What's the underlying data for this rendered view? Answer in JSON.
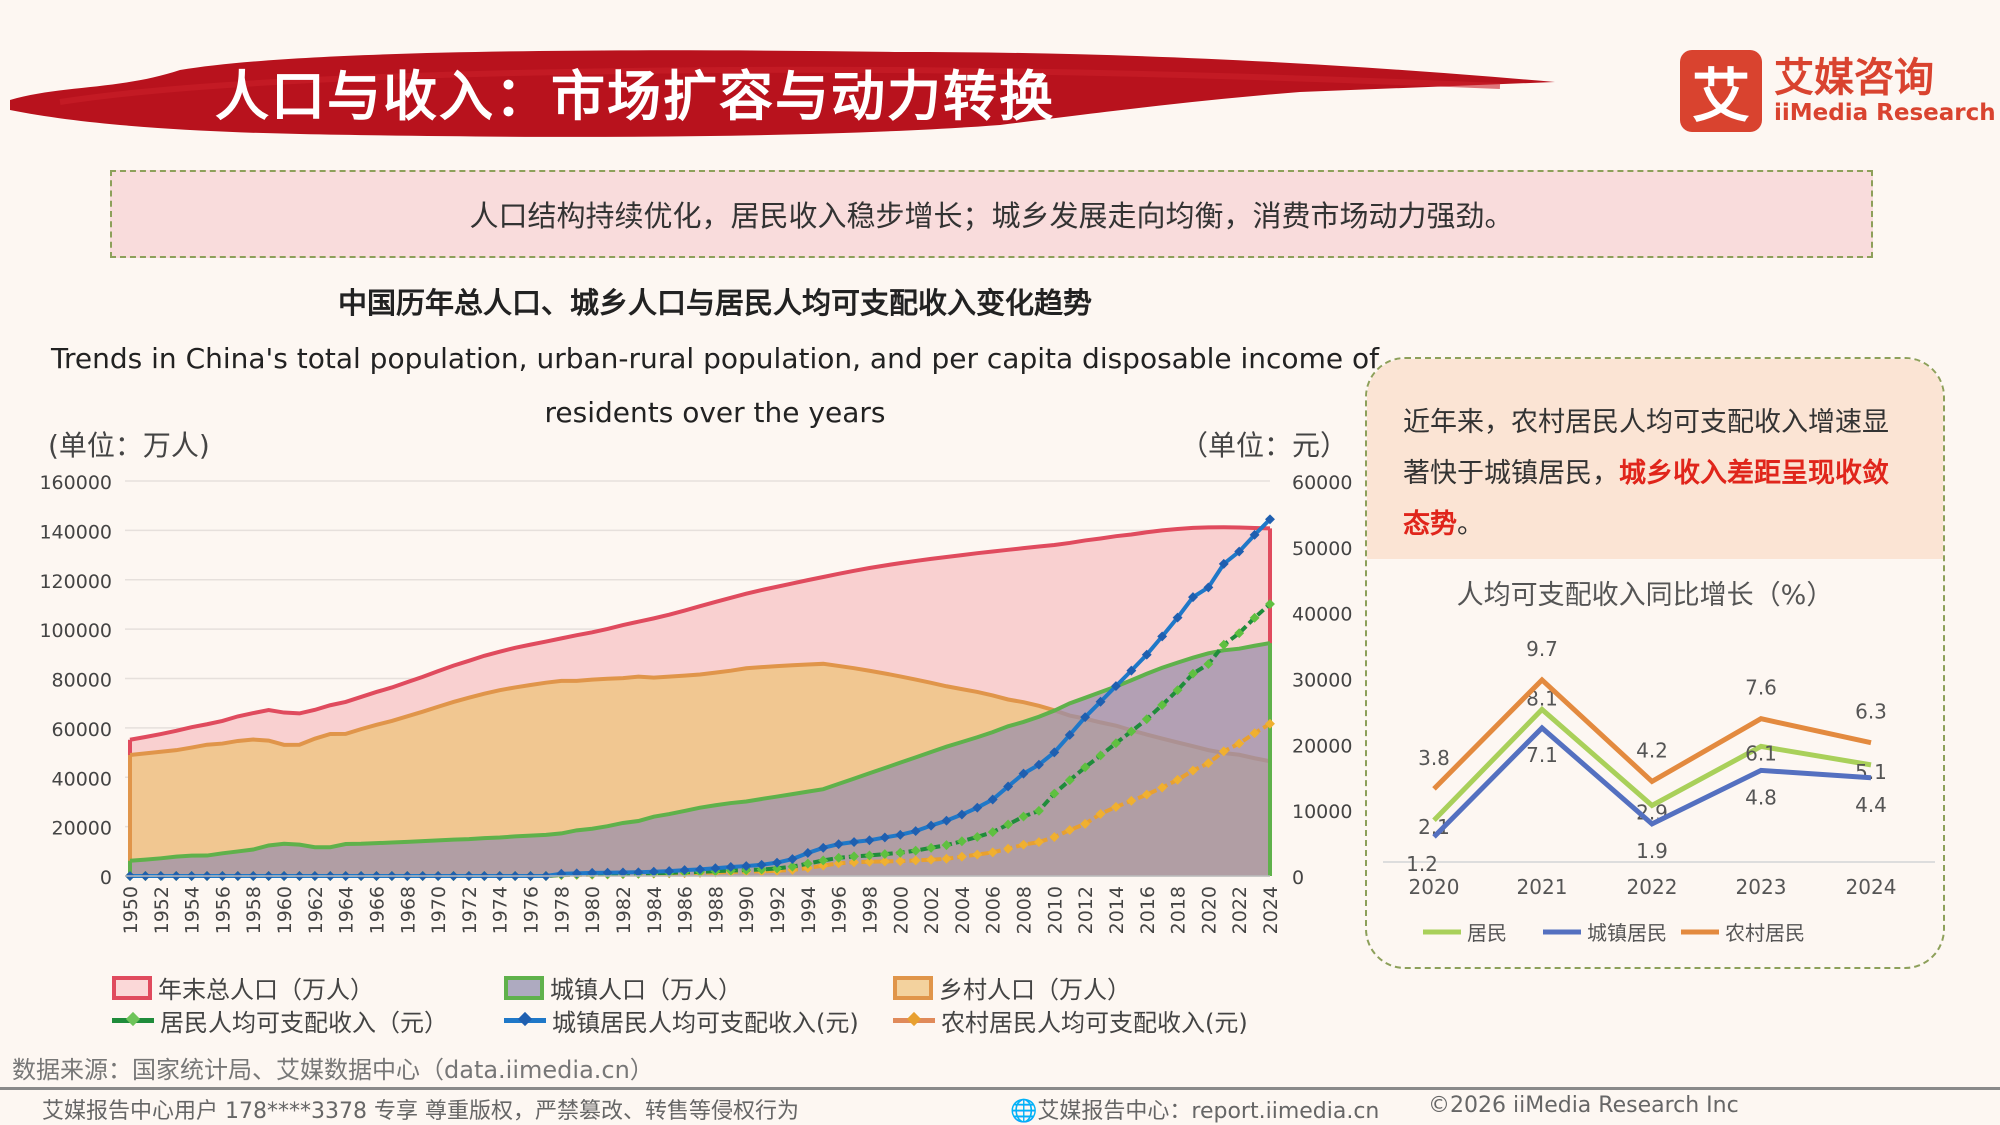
{
  "header": {
    "title": "人口与收入：市场扩容与动力转换",
    "logo_cn": "艾媒咨询",
    "logo_en": "iiMedia Research",
    "logo_mark": "艾"
  },
  "summary": "人口结构持续优化，居民收入稳步增长；城乡发展走向均衡，消费市场动力强劲。",
  "colors": {
    "brand": "#d9432f",
    "total": "#e04b5e",
    "total_fill": "#f9d0d0",
    "urban_line": "#5fb14b",
    "urban_fill": "#9b90ab",
    "rural_line": "#e0954a",
    "rural_fill": "#f0c58a",
    "resident_income": "#1f8c3b",
    "urban_income": "#1f78c8",
    "rural_income": "#e8a030"
  },
  "chart_data": [
    {
      "type": "area+line",
      "title": "中国历年总人口、城乡人口与居民人均可支配收入变化趋势",
      "subtitle": "Trends in China's total population, urban-rural population, and per capita disposable income of residents over the years",
      "ylabel_left": "(单位：万人)",
      "ylabel_right": "（单位：元）",
      "ylim_left": [
        0,
        160000
      ],
      "yticks_left": [
        0,
        20000,
        40000,
        60000,
        80000,
        100000,
        120000,
        140000,
        160000
      ],
      "ylim_right": [
        0,
        60000
      ],
      "yticks_right": [
        0,
        10000,
        20000,
        30000,
        40000,
        50000,
        60000
      ],
      "grid": true,
      "legend_position": "bottom",
      "x_start": 1950,
      "x_end": 2024,
      "series": [
        {
          "name": "年末总人口（万人）",
          "axis": "left",
          "kind": "area",
          "values": [
            55196,
            56300,
            57482,
            58796,
            60266,
            61465,
            62828,
            64653,
            65994,
            67207,
            66207,
            65859,
            67295,
            69172,
            70499,
            72538,
            74542,
            76368,
            78534,
            80671,
            82992,
            85229,
            87177,
            89211,
            90859,
            92420,
            93717,
            94974,
            96259,
            97542,
            98705,
            100072,
            101654,
            103008,
            104357,
            105851,
            107507,
            109300,
            111026,
            112704,
            114333,
            115823,
            117171,
            118517,
            119850,
            121121,
            122389,
            123626,
            124761,
            125786,
            126743,
            127627,
            128453,
            129227,
            129988,
            130756,
            131448,
            132129,
            132802,
            133450,
            134091,
            134916,
            135922,
            136726,
            137646,
            138326,
            139232,
            140011,
            140541,
            141008,
            141212,
            141260,
            141175,
            140967,
            140828
          ]
        },
        {
          "name": "城镇人口（万人）",
          "axis": "left",
          "kind": "area",
          "values": [
            6169,
            6632,
            7163,
            7826,
            8249,
            8285,
            9185,
            9949,
            10721,
            12371,
            13073,
            12707,
            11659,
            11646,
            12950,
            13045,
            13313,
            13548,
            13838,
            14117,
            14424,
            14711,
            14935,
            15345,
            15595,
            16030,
            16341,
            16669,
            17245,
            18495,
            19140,
            20171,
            21480,
            22274,
            24017,
            25094,
            26366,
            27674,
            28661,
            29540,
            30195,
            31203,
            32175,
            33173,
            34169,
            35174,
            37304,
            39449,
            41608,
            43748,
            45906,
            48064,
            50212,
            52376,
            54283,
            56212,
            58288,
            60633,
            62403,
            64512,
            66978,
            69927,
            72175,
            74502,
            76738,
            79302,
            81924,
            84343,
            86433,
            88426,
            90220,
            91425,
            92071,
            93267,
            94350
          ]
        },
        {
          "name": "乡村人口（万人）",
          "axis": "left",
          "kind": "area",
          "values": [
            49027,
            49668,
            50319,
            50970,
            52017,
            53180,
            53643,
            54704,
            55273,
            54836,
            53134,
            53152,
            55636,
            57526,
            57549,
            59493,
            61229,
            62820,
            64696,
            66554,
            68568,
            70518,
            72242,
            73866,
            75264,
            76390,
            77376,
            78305,
            79014,
            79047,
            79565,
            79901,
            80174,
            80734,
            80340,
            80757,
            81141,
            81626,
            82365,
            83164,
            84138,
            84620,
            84996,
            85344,
            85681,
            85947,
            85085,
            84177,
            83153,
            82038,
            80837,
            79563,
            78241,
            76851,
            75705,
            74544,
            73160,
            71496,
            70399,
            68938,
            67113,
            64989,
            63747,
            62224,
            60908,
            59024,
            57308,
            55668,
            54108,
            52582,
            50992,
            49835,
            49104,
            47700,
            46478
          ]
        },
        {
          "name": "居民人均可支配收入（元）",
          "axis": "right",
          "kind": "line",
          "values": [
            0,
            0,
            0,
            0,
            0,
            0,
            0,
            0,
            0,
            0,
            0,
            0,
            0,
            0,
            0,
            0,
            0,
            0,
            0,
            0,
            0,
            0,
            0,
            0,
            0,
            0,
            0,
            0,
            171,
            210,
            250,
            280,
            320,
            360,
            420,
            480,
            560,
            620,
            740,
            830,
            900,
            990,
            1150,
            1420,
            1880,
            2360,
            2760,
            2980,
            3120,
            3330,
            3530,
            3850,
            4280,
            4690,
            5280,
            5930,
            6670,
            7830,
            9030,
            9900,
            12520,
            14550,
            16510,
            18311,
            20167,
            21966,
            23821,
            25974,
            28228,
            30733,
            32189,
            35128,
            36883,
            39218,
            41314
          ]
        },
        {
          "name": "城镇居民人均可支配收入(元)",
          "axis": "right",
          "kind": "line",
          "values": [
            0,
            0,
            0,
            0,
            0,
            0,
            0,
            0,
            0,
            0,
            0,
            0,
            0,
            0,
            0,
            0,
            0,
            0,
            0,
            0,
            0,
            0,
            0,
            0,
            0,
            0,
            0,
            0,
            343,
            405,
            478,
            500,
            535,
            565,
            652,
            739,
            900,
            1002,
            1180,
            1374,
            1510,
            1701,
            2027,
            2577,
            3496,
            4283,
            4839,
            5160,
            5425,
            5854,
            6256,
            6824,
            7652,
            8406,
            9335,
            10382,
            11620,
            13603,
            15549,
            16901,
            18779,
            21427,
            24127,
            26467,
            28844,
            31195,
            33616,
            36396,
            39251,
            42359,
            43834,
            47412,
            49283,
            51821,
            54188
          ]
        },
        {
          "name": "农村居民人均可支配收入(元)",
          "axis": "right",
          "kind": "line",
          "values": [
            0,
            0,
            0,
            0,
            0,
            0,
            0,
            0,
            0,
            0,
            0,
            0,
            0,
            0,
            0,
            0,
            0,
            0,
            0,
            0,
            0,
            0,
            0,
            0,
            0,
            0,
            0,
            0,
            134,
            160,
            191,
            223,
            270,
            310,
            355,
            398,
            424,
            463,
            545,
            602,
            686,
            709,
            784,
            922,
            1221,
            1578,
            1926,
            2090,
            2162,
            2210,
            2253,
            2366,
            2476,
            2622,
            2936,
            3255,
            3587,
            4140,
            4761,
            5153,
            5919,
            6977,
            7917,
            9430,
            10489,
            11422,
            12363,
            13432,
            14617,
            16021,
            17131,
            18931,
            20133,
            21691,
            23119
          ]
        }
      ]
    },
    {
      "type": "line",
      "title": "人均可支配收入同比增长（%）",
      "categories": [
        "2020",
        "2021",
        "2022",
        "2023",
        "2024"
      ],
      "series": [
        {
          "name": "居民",
          "values": [
            2.1,
            8.1,
            2.9,
            6.1,
            5.1
          ]
        },
        {
          "name": "城镇居民",
          "values": [
            1.2,
            7.1,
            1.9,
            4.8,
            4.4
          ]
        },
        {
          "name": "农村居民",
          "values": [
            3.8,
            9.7,
            4.2,
            7.6,
            6.3
          ]
        }
      ]
    }
  ],
  "panel": {
    "text_before": "近年来，农村居民人均可支配收入增速显著快于城镇居民，",
    "text_highlight": "城乡收入差距呈现收敛态势",
    "text_after": "。"
  },
  "source": "数据来源：国家统计局、艾媒数据中心（data.iimedia.cn）",
  "footer": {
    "left": "艾媒报告中心用户 178****3378 专享 尊重版权，严禁篡改、转售等侵权行为",
    "center": "艾媒报告中心：report.iimedia.cn",
    "right": "©2026  iiMedia Research  Inc"
  }
}
